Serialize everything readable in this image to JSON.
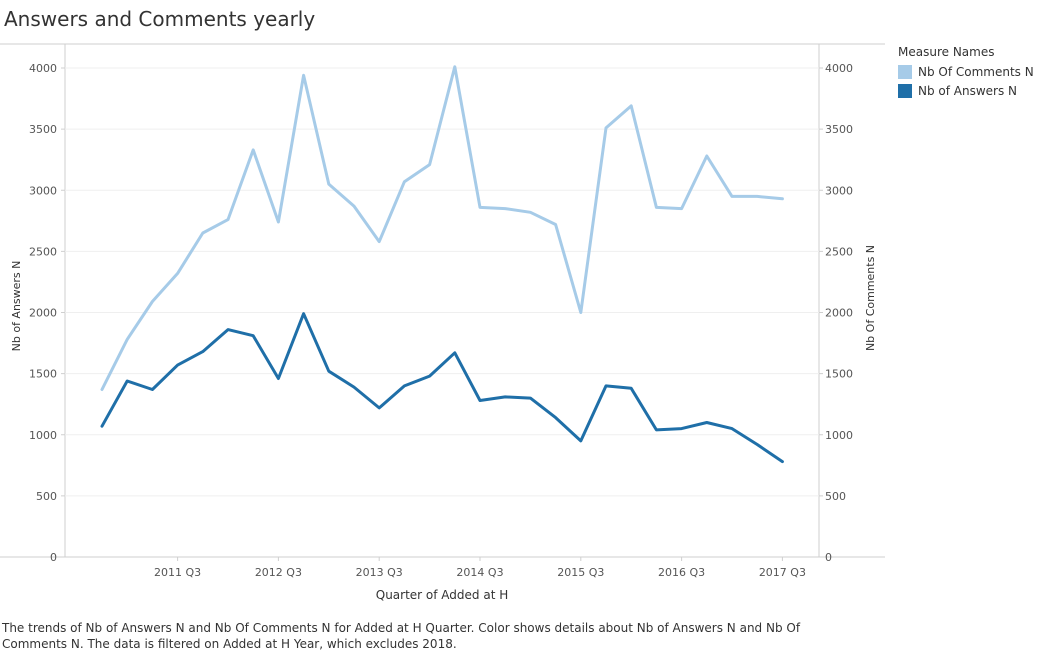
{
  "title": "Answers and Comments yearly",
  "legend": {
    "title": "Measure Names",
    "items": [
      {
        "label": "Nb Of Comments N",
        "color": "#a6cbe8"
      },
      {
        "label": "Nb of Answers N",
        "color": "#1f6fa8"
      }
    ]
  },
  "footer": "The trends of Nb of Answers N and Nb Of Comments N for Added at H Quarter.  Color shows details about Nb of Answers N and Nb Of Comments N. The data is filtered on Added at H Year, which excludes 2018.",
  "chart_data": {
    "type": "line",
    "title": "Answers and Comments yearly",
    "xlabel": "Quarter of Added at H",
    "ylabel": "Nb of Answers N",
    "y2label": "Nb Of Comments N",
    "ylim": [
      0,
      4000
    ],
    "yticks": [
      0,
      500,
      1000,
      1500,
      2000,
      2500,
      3000,
      3500,
      4000
    ],
    "xtick_labels": [
      "2011 Q3",
      "2012 Q3",
      "2013 Q3",
      "2014 Q3",
      "2015 Q3",
      "2016 Q3",
      "2017 Q3"
    ],
    "x": [
      "2010 Q4",
      "2011 Q1",
      "2011 Q2",
      "2011 Q3",
      "2011 Q4",
      "2012 Q1",
      "2012 Q2",
      "2012 Q3",
      "2012 Q4",
      "2013 Q1",
      "2013 Q2",
      "2013 Q3",
      "2013 Q4",
      "2014 Q1",
      "2014 Q2",
      "2014 Q3",
      "2014 Q4",
      "2015 Q1",
      "2015 Q2",
      "2015 Q3",
      "2015 Q4",
      "2016 Q1",
      "2016 Q2",
      "2016 Q3",
      "2016 Q4",
      "2017 Q1",
      "2017 Q2",
      "2017 Q3",
      "2017 Q4"
    ],
    "series": [
      {
        "name": "Nb Of Comments N",
        "color": "#a6cbe8",
        "values": [
          1370,
          1780,
          2090,
          2320,
          2650,
          2760,
          3330,
          2740,
          3940,
          3050,
          2870,
          2580,
          3070,
          3210,
          4010,
          2860,
          2850,
          2820,
          2720,
          2000,
          3510,
          3690,
          2860,
          2850,
          3280,
          2950,
          2950,
          2930,
          null
        ]
      },
      {
        "name": "Nb of Answers N",
        "color": "#1f6fa8",
        "values": [
          1070,
          1440,
          1370,
          1570,
          1680,
          1860,
          1810,
          1460,
          1990,
          1520,
          1390,
          1220,
          1400,
          1480,
          1670,
          1280,
          1310,
          1300,
          1140,
          950,
          1400,
          1380,
          1040,
          1050,
          1100,
          1050,
          920,
          780,
          null
        ]
      }
    ]
  }
}
